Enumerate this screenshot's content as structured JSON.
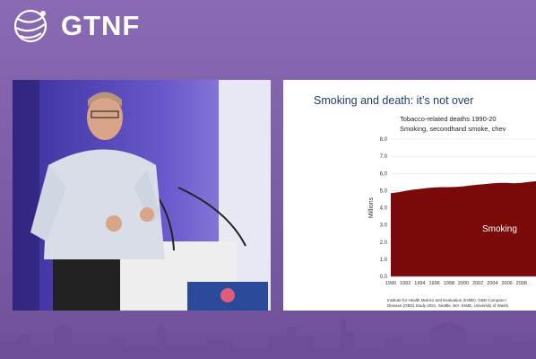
{
  "brand": {
    "name": "GTNF",
    "colors": {
      "background": "#7e5fa8",
      "chart_fill": "#7a0a0a",
      "title_blue": "#1f3b68"
    }
  },
  "slide": {
    "title": "Smoking and death: it’s not over",
    "chart_title_line1": "Tobacco-related deaths 1990-20",
    "chart_title_line2": "Smoking, secondhand smoke, chev",
    "citation_line1": "Institute for Health Metrics and Evaluation (IHME). GBD Compare I",
    "citation_line2": "Disease (GBD) Study 2021. Seattle, WA: IHME, University of Washi"
  },
  "chart_data": {
    "type": "area",
    "ylabel": "Millions",
    "ylim": [
      0,
      8
    ],
    "yticks": [
      "0.0",
      "1.0",
      "2.0",
      "3.0",
      "4.0",
      "5.0",
      "6.0",
      "7.0",
      "8.0"
    ],
    "xticks": [
      "1990",
      "1992",
      "1994",
      "1996",
      "1998",
      "2000",
      "2002",
      "2004",
      "2006",
      "2008"
    ],
    "series": [
      {
        "name": "Smoking",
        "x": [
          1990,
          1991,
          1992,
          1993,
          1994,
          1995,
          1996,
          1997,
          1998,
          1999,
          2000,
          2001,
          2002,
          2003,
          2004,
          2005,
          2006,
          2007,
          2008,
          2009,
          2010
        ],
        "values": [
          4.85,
          4.9,
          4.98,
          5.05,
          5.1,
          5.15,
          5.18,
          5.2,
          5.2,
          5.22,
          5.25,
          5.3,
          5.35,
          5.38,
          5.42,
          5.45,
          5.45,
          5.42,
          5.45,
          5.5,
          5.55
        ]
      }
    ],
    "grid": true
  }
}
